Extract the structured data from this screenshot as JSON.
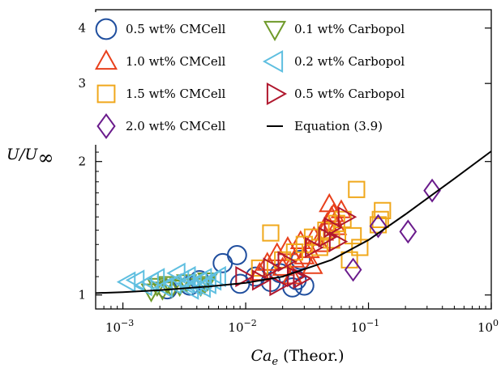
{
  "chart_data": {
    "type": "scatter",
    "xlabel": "Ca_e (Theor.)",
    "xlabel_parts": {
      "main": "Ca",
      "sub": "e",
      "rest": " (Theor.)"
    },
    "ylabel": "U/U∞",
    "ylabel_parts": {
      "main": "U/U",
      "sub": "∞"
    },
    "x_scale": "log",
    "y_scale": "log",
    "xlim": [
      0.0006,
      1.0
    ],
    "ylim": [
      0.93,
      4.4
    ],
    "x_ticks": [
      {
        "value": 0.001,
        "base": "10",
        "exp": "−3"
      },
      {
        "value": 0.01,
        "base": "10",
        "exp": "−2"
      },
      {
        "value": 0.1,
        "base": "10",
        "exp": "−1"
      },
      {
        "value": 1.0,
        "base": "10",
        "exp": "0"
      }
    ],
    "y_ticks": [
      {
        "value": 1,
        "label": "1"
      },
      {
        "value": 2,
        "label": "2"
      },
      {
        "value": 3,
        "label": "3"
      },
      {
        "value": 4,
        "label": "4"
      }
    ],
    "grid": false,
    "legend_position": "top",
    "series": [
      {
        "name": "0.5 wt% CMCell",
        "marker": "circle",
        "color": "#1f4e9e",
        "x": [
          0.0023,
          0.0035,
          0.0042,
          0.0065,
          0.0085,
          0.009,
          0.012,
          0.016,
          0.019,
          0.024,
          0.026,
          0.028,
          0.03
        ],
        "y": [
          1.03,
          1.05,
          1.08,
          1.18,
          1.23,
          1.06,
          1.1,
          1.07,
          1.12,
          1.04,
          1.08,
          1.2,
          1.05
        ]
      },
      {
        "name": "1.0 wt% CMCell",
        "marker": "triangle-up",
        "color": "#e8401c",
        "x": [
          0.013,
          0.015,
          0.018,
          0.02,
          0.022,
          0.025,
          0.028,
          0.03,
          0.033,
          0.036,
          0.04,
          0.043,
          0.046,
          0.05,
          0.055,
          0.06,
          0.024,
          0.035,
          0.048,
          0.052
        ],
        "y": [
          1.12,
          1.18,
          1.24,
          1.15,
          1.28,
          1.2,
          1.32,
          1.22,
          1.26,
          1.35,
          1.3,
          1.38,
          1.45,
          1.5,
          1.42,
          1.55,
          1.1,
          1.16,
          1.6,
          1.52
        ]
      },
      {
        "name": "1.5 wt% CMCell",
        "marker": "square",
        "color": "#f0a81c",
        "x": [
          0.013,
          0.016,
          0.02,
          0.025,
          0.03,
          0.035,
          0.04,
          0.045,
          0.05,
          0.055,
          0.062,
          0.07,
          0.075,
          0.08,
          0.085,
          0.12,
          0.13,
          0.125
        ],
        "y": [
          1.15,
          1.38,
          1.2,
          1.25,
          1.3,
          1.35,
          1.28,
          1.4,
          1.33,
          1.45,
          1.48,
          1.2,
          1.36,
          1.73,
          1.28,
          1.44,
          1.55,
          1.48
        ]
      },
      {
        "name": "2.0 wt% CMCell",
        "marker": "diamond",
        "color": "#6a1b8c",
        "x": [
          0.075,
          0.12,
          0.21,
          0.33
        ],
        "y": [
          1.14,
          1.43,
          1.39,
          1.72
        ]
      },
      {
        "name": "0.1 wt% Carbopol",
        "marker": "triangle-down",
        "color": "#6f9a2a",
        "x": [
          0.0017,
          0.0019,
          0.0021,
          0.0023,
          0.0025,
          0.0029,
          0.0033,
          0.0043,
          0.0046,
          0.0049
        ],
        "y": [
          1.02,
          1.05,
          1.03,
          1.06,
          1.04,
          1.05,
          1.07,
          1.05,
          1.06,
          1.08
        ]
      },
      {
        "name": "0.2 wt% Carbopol",
        "marker": "triangle-left",
        "color": "#5fbfe0",
        "x": [
          0.0011,
          0.0013,
          0.0015,
          0.0017,
          0.0019,
          0.0022,
          0.0026,
          0.003,
          0.0034,
          0.0038,
          0.0042,
          0.0046,
          0.005,
          0.0055,
          0.006,
          0.0028,
          0.0033,
          0.0036,
          0.0045
        ],
        "y": [
          1.07,
          1.08,
          1.05,
          1.07,
          1.09,
          1.04,
          1.06,
          1.08,
          1.1,
          1.05,
          1.07,
          1.09,
          1.06,
          1.08,
          1.1,
          1.12,
          1.06,
          1.03,
          1.04
        ]
      },
      {
        "name": "0.5 wt% Carbopol",
        "marker": "triangle-right",
        "color": "#b0182e",
        "x": [
          0.0095,
          0.013,
          0.016,
          0.018,
          0.021,
          0.025,
          0.028,
          0.035,
          0.045,
          0.055,
          0.065,
          0.05
        ],
        "y": [
          1.1,
          1.08,
          1.15,
          1.05,
          1.19,
          1.1,
          1.09,
          1.28,
          1.35,
          1.32,
          1.5,
          1.42
        ]
      }
    ],
    "line": {
      "name": "Equation (3.9)",
      "color": "#000000",
      "x": [
        0.0006,
        0.001,
        0.002,
        0.005,
        0.01,
        0.02,
        0.05,
        0.1,
        0.2,
        0.5,
        1.0
      ],
      "y": [
        1.01,
        1.015,
        1.025,
        1.045,
        1.065,
        1.1,
        1.2,
        1.33,
        1.52,
        1.83,
        2.11
      ]
    }
  }
}
